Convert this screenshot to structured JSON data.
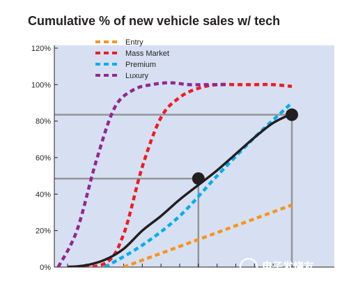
{
  "chart_data": {
    "type": "line",
    "title": "Cumulative % of new vehicle sales w/ tech",
    "xlabel": "",
    "ylabel": "",
    "x_ticks": 13,
    "xlim": [
      0,
      12
    ],
    "ylim": [
      0,
      120
    ],
    "y_ticks": [
      "0%",
      "20%",
      "40%",
      "60%",
      "80%",
      "100%",
      "120%"
    ],
    "y_tick_values": [
      0,
      20,
      40,
      60,
      80,
      100,
      120
    ],
    "legend_position": "top-left",
    "background_color": "#d6e0f2",
    "series": [
      {
        "name": "Entry",
        "color": "#f7941d",
        "style": "dashed",
        "x": [
          3,
          12
        ],
        "y": [
          0,
          34
        ]
      },
      {
        "name": "Mass Market",
        "color": "#ed1c24",
        "style": "dashed",
        "x": [
          0,
          2,
          3,
          4,
          5,
          6,
          7,
          8,
          9,
          10,
          11,
          12
        ],
        "y": [
          0,
          2,
          18,
          55,
          82,
          93,
          98,
          100,
          100,
          100,
          100,
          99
        ]
      },
      {
        "name": "Premium",
        "color": "#00aeef",
        "style": "dashed",
        "x": [
          2,
          4,
          6,
          8,
          10,
          12
        ],
        "y": [
          0,
          12,
          28,
          50,
          71,
          90
        ]
      },
      {
        "name": "Luxury",
        "color": "#92278f",
        "style": "dashed",
        "x": [
          -0.5,
          0.5,
          1.5,
          2.5,
          3.5,
          4.5,
          5.5,
          6.5,
          7.5,
          8.5
        ],
        "y": [
          0,
          20,
          57,
          87,
          97,
          100,
          101,
          100,
          100,
          100
        ]
      },
      {
        "name": "",
        "color": "#231f20",
        "style": "solid",
        "x": [
          0,
          1,
          2,
          3,
          4,
          5,
          6,
          7,
          8,
          9,
          10,
          11,
          12
        ],
        "y": [
          0,
          1,
          4,
          10,
          20,
          28,
          37,
          45,
          53,
          62,
          71,
          79,
          84
        ]
      }
    ],
    "markers": [
      {
        "x": 7,
        "y": 48.5,
        "color": "#231f20"
      },
      {
        "x": 12,
        "y": 83.5,
        "color": "#231f20"
      }
    ],
    "reference_lines": [
      {
        "x": 7,
        "y": 48.5,
        "color": "#939598"
      },
      {
        "x": 12,
        "y": 83.5,
        "color": "#939598"
      }
    ]
  },
  "watermark": {
    "text": "电子发烧友",
    "url": "www.elecfans.com"
  }
}
